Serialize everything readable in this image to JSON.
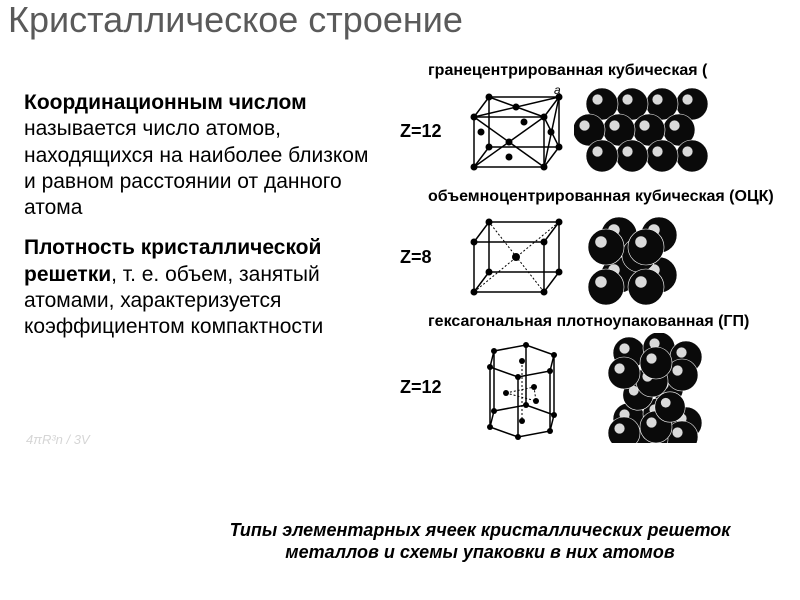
{
  "title": "Кристаллическое строение",
  "para1_bold": "Координационным числом",
  "para1_rest": " называется число атомов, находящихся на наиболее близком и равном расстоянии от данного атома",
  "para2_bold": "Плотность кристаллической решетки",
  "para2_rest": ", т. е. объем, занятый атомами, характеризуется коэффициентом компактности",
  "lattices": {
    "fcc": {
      "label": "гранецентрированная кубическая (",
      "z": "Z=12"
    },
    "bcc": {
      "label": "объемноцентрированная кубическая (ОЦК)",
      "z": "Z=8"
    },
    "hcp": {
      "label": "гексагональная плотноупакованная (ГП)",
      "z": "Z=12"
    }
  },
  "caption": "Типы элементарных ячеек кристаллических решеток металлов и схемы упаковки в них атомов",
  "overlay_formula": "4πR³n / 3V",
  "ink": "#000000",
  "sphere_fill": "#0a0a0a",
  "sphere_hi": "#ffffff"
}
